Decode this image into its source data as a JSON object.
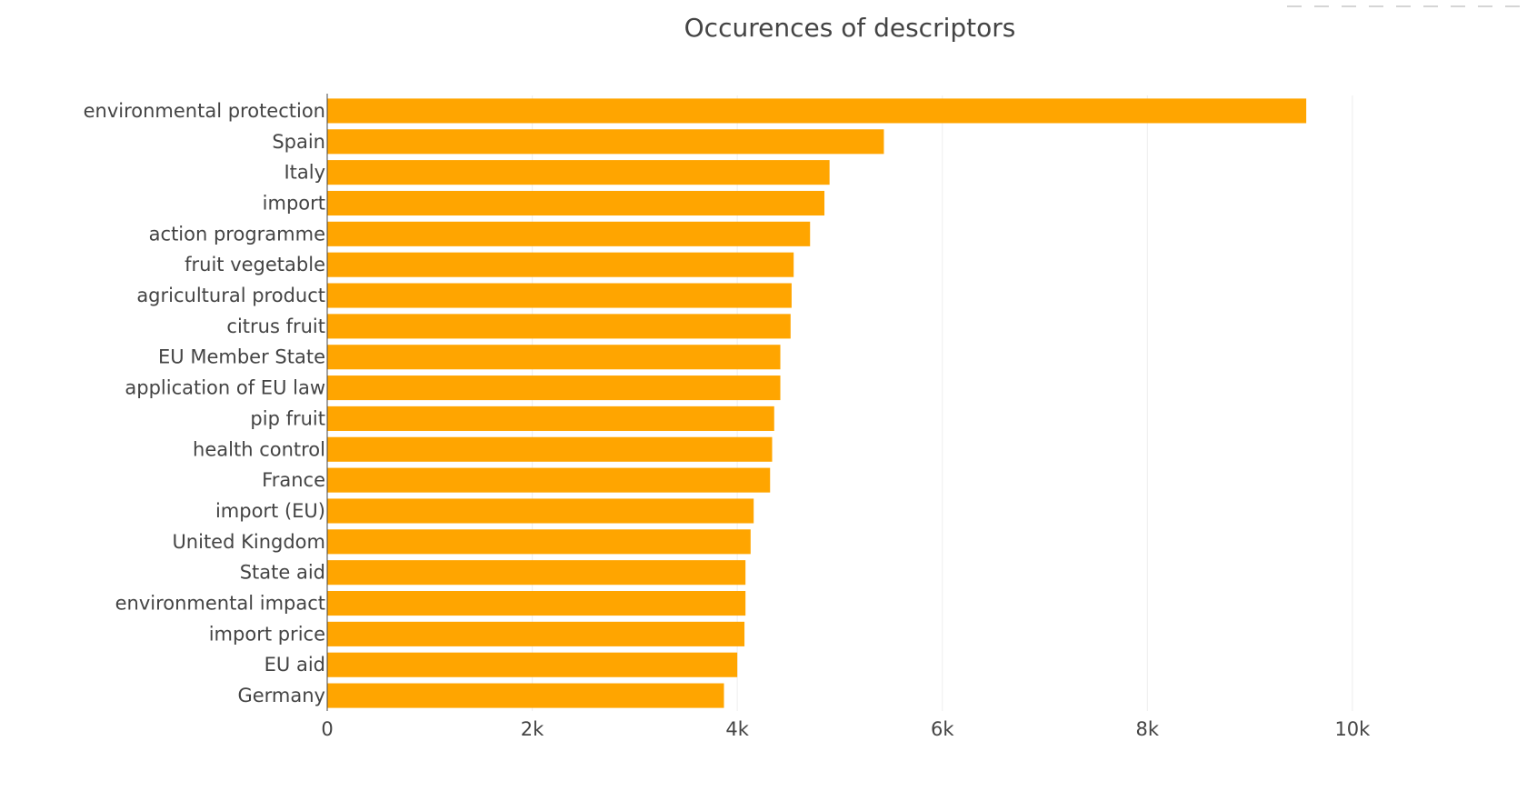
{
  "chart_data": {
    "type": "bar",
    "orientation": "horizontal",
    "title": "Occurences of descriptors",
    "xlabel": "",
    "ylabel": "",
    "xlim": [
      0,
      11260
    ],
    "xticks": [
      0,
      2000,
      4000,
      6000,
      8000,
      10000
    ],
    "xtick_labels": [
      "0",
      "2k",
      "4k",
      "6k",
      "8k",
      "10k"
    ],
    "grid": true,
    "bar_color": "#FFA500",
    "categories": [
      "environmental protection",
      "Spain",
      "Italy",
      "import",
      "action programme",
      "fruit vegetable",
      "agricultural product",
      "citrus fruit",
      "EU Member State",
      "application of EU law",
      "pip fruit",
      "health control",
      "France",
      "import (EU)",
      "United Kingdom",
      "State aid",
      "environmental impact",
      "import price",
      "EU aid",
      "Germany"
    ],
    "values": [
      9550,
      5430,
      4900,
      4850,
      4710,
      4550,
      4530,
      4520,
      4420,
      4420,
      4360,
      4340,
      4320,
      4160,
      4130,
      4080,
      4080,
      4070,
      4000,
      3870
    ]
  },
  "modebar": {
    "icons": [
      "camera-icon",
      "zoom-icon",
      "pan-icon",
      "select-icon",
      "lasso-icon",
      "zoom-in-icon",
      "zoom-out-icon",
      "autoscale-icon",
      "reset-axes-icon"
    ]
  }
}
